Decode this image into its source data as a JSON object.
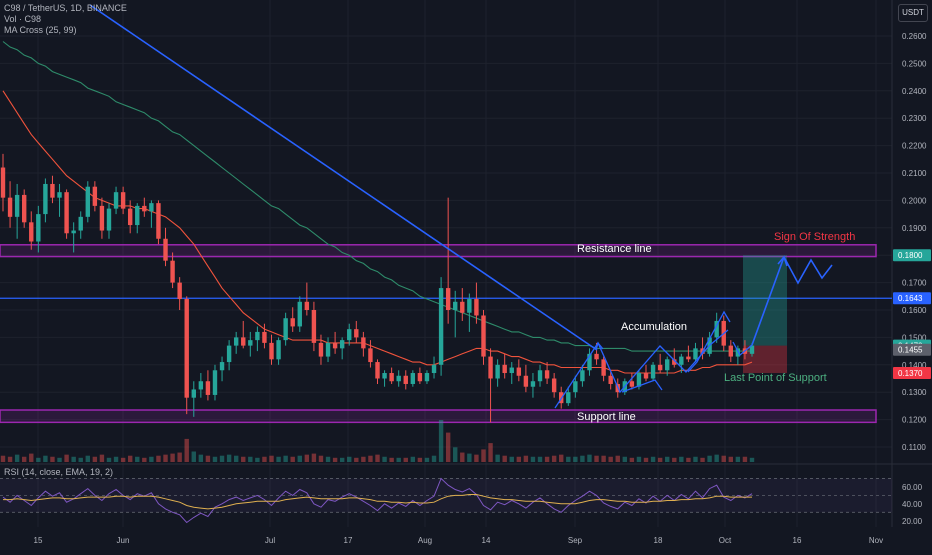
{
  "header": {
    "symbol_line": "C98 / TetherUS, 1D, BINANCE",
    "volume_label": "Vol · C98",
    "ma_label": "MA Cross (25, 99)",
    "rsi_label": "RSI (14, close, EMA, 19, 2)",
    "currency": "USDT"
  },
  "colors": {
    "background": "#131722",
    "up": "#26a69a",
    "down": "#ef5350",
    "ma_fast": "#f0533c",
    "ma_slow": "#2e8b6a",
    "trendline": "#2962ff",
    "zone": "#9c27b0",
    "resistance": "#2962ff",
    "strength_text": "#f23645",
    "lps_text": "#4caf80"
  },
  "chart_data": {
    "type": "candlestick",
    "symbol": "C98 / TetherUS",
    "interval": "1D",
    "exchange": "BINANCE",
    "y_axis": {
      "scale": "linear",
      "ylim": [
        0.105,
        0.265
      ],
      "ticks": [
        "0.1100",
        "0.1200",
        "0.1300",
        "0.1400",
        "0.1500",
        "0.1600",
        "0.1700",
        "0.1800",
        "0.1900",
        "0.2000",
        "0.2100",
        "0.2200",
        "0.2300",
        "0.2400",
        "0.2500",
        "0.2600"
      ]
    },
    "x_axis": {
      "ticks": [
        "15",
        "Jun",
        "Jul",
        "17",
        "Aug",
        "14",
        "Sep",
        "18",
        "Oct",
        "16",
        "Nov"
      ]
    },
    "price_labels": [
      {
        "value": "0.1800",
        "color": "#26a69a"
      },
      {
        "value": "0.1643",
        "color": "#2962ff"
      },
      {
        "value": "0.1470",
        "color": "#26a69a"
      },
      {
        "value": "0.1455",
        "color": "#5d606b"
      },
      {
        "value": "0.1370",
        "color": "#f23645"
      }
    ],
    "levels": {
      "resistance_zone": [
        0.1795,
        0.1838
      ],
      "support_zone": [
        0.119,
        0.1235
      ],
      "horizontal_line": 0.1643,
      "target_zone": [
        0.147,
        0.18
      ],
      "stop_zone": [
        0.137,
        0.147
      ]
    },
    "annotations": [
      "Resistance line",
      "Support line",
      "Accumulation",
      "Sign Of Strength",
      "Last Point of Support"
    ],
    "rsi": {
      "ticks": [
        "60.00",
        "40.00",
        "20.00"
      ],
      "ylim": [
        15,
        80
      ],
      "levels": [
        70,
        50,
        30
      ]
    },
    "candles": [
      [
        0.212,
        0.217,
        0.196,
        0.201
      ],
      [
        0.201,
        0.207,
        0.19,
        0.194
      ],
      [
        0.194,
        0.206,
        0.186,
        0.202
      ],
      [
        0.202,
        0.204,
        0.19,
        0.192
      ],
      [
        0.192,
        0.196,
        0.182,
        0.185
      ],
      [
        0.185,
        0.198,
        0.181,
        0.195
      ],
      [
        0.195,
        0.208,
        0.192,
        0.206
      ],
      [
        0.206,
        0.209,
        0.199,
        0.201
      ],
      [
        0.201,
        0.206,
        0.194,
        0.203
      ],
      [
        0.203,
        0.204,
        0.186,
        0.188
      ],
      [
        0.188,
        0.192,
        0.181,
        0.189
      ],
      [
        0.189,
        0.196,
        0.186,
        0.194
      ],
      [
        0.194,
        0.207,
        0.192,
        0.205
      ],
      [
        0.205,
        0.207,
        0.196,
        0.198
      ],
      [
        0.198,
        0.201,
        0.186,
        0.189
      ],
      [
        0.189,
        0.199,
        0.186,
        0.197
      ],
      [
        0.197,
        0.205,
        0.195,
        0.203
      ],
      [
        0.203,
        0.205,
        0.195,
        0.197
      ],
      [
        0.197,
        0.2,
        0.188,
        0.191
      ],
      [
        0.191,
        0.199,
        0.188,
        0.198
      ],
      [
        0.198,
        0.201,
        0.194,
        0.196
      ],
      [
        0.196,
        0.2,
        0.19,
        0.199
      ],
      [
        0.199,
        0.2,
        0.184,
        0.186
      ],
      [
        0.186,
        0.19,
        0.176,
        0.178
      ],
      [
        0.178,
        0.181,
        0.168,
        0.17
      ],
      [
        0.17,
        0.172,
        0.16,
        0.164
      ],
      [
        0.164,
        0.165,
        0.122,
        0.128
      ],
      [
        0.128,
        0.134,
        0.121,
        0.131
      ],
      [
        0.131,
        0.137,
        0.128,
        0.134
      ],
      [
        0.134,
        0.138,
        0.127,
        0.129
      ],
      [
        0.129,
        0.14,
        0.127,
        0.138
      ],
      [
        0.138,
        0.143,
        0.134,
        0.141
      ],
      [
        0.141,
        0.149,
        0.138,
        0.147
      ],
      [
        0.147,
        0.152,
        0.144,
        0.15
      ],
      [
        0.15,
        0.156,
        0.146,
        0.147
      ],
      [
        0.147,
        0.152,
        0.143,
        0.149
      ],
      [
        0.149,
        0.154,
        0.145,
        0.152
      ],
      [
        0.152,
        0.155,
        0.146,
        0.148
      ],
      [
        0.148,
        0.151,
        0.14,
        0.142
      ],
      [
        0.142,
        0.15,
        0.14,
        0.149
      ],
      [
        0.149,
        0.159,
        0.147,
        0.157
      ],
      [
        0.157,
        0.161,
        0.152,
        0.154
      ],
      [
        0.154,
        0.165,
        0.152,
        0.163
      ],
      [
        0.163,
        0.17,
        0.158,
        0.16
      ],
      [
        0.16,
        0.163,
        0.145,
        0.148
      ],
      [
        0.148,
        0.151,
        0.14,
        0.143
      ],
      [
        0.143,
        0.15,
        0.141,
        0.148
      ],
      [
        0.148,
        0.152,
        0.144,
        0.146
      ],
      [
        0.146,
        0.15,
        0.142,
        0.149
      ],
      [
        0.149,
        0.155,
        0.147,
        0.153
      ],
      [
        0.153,
        0.156,
        0.148,
        0.15
      ],
      [
        0.15,
        0.152,
        0.143,
        0.146
      ],
      [
        0.146,
        0.149,
        0.139,
        0.141
      ],
      [
        0.141,
        0.142,
        0.133,
        0.135
      ],
      [
        0.135,
        0.138,
        0.132,
        0.137
      ],
      [
        0.137,
        0.139,
        0.133,
        0.134
      ],
      [
        0.134,
        0.138,
        0.132,
        0.136
      ],
      [
        0.136,
        0.138,
        0.131,
        0.133
      ],
      [
        0.133,
        0.138,
        0.132,
        0.137
      ],
      [
        0.137,
        0.139,
        0.133,
        0.134
      ],
      [
        0.134,
        0.138,
        0.133,
        0.137
      ],
      [
        0.137,
        0.143,
        0.135,
        0.14
      ],
      [
        0.14,
        0.172,
        0.136,
        0.168
      ],
      [
        0.168,
        0.201,
        0.155,
        0.16
      ],
      [
        0.16,
        0.167,
        0.15,
        0.163
      ],
      [
        0.163,
        0.168,
        0.156,
        0.159
      ],
      [
        0.159,
        0.166,
        0.152,
        0.164
      ],
      [
        0.164,
        0.17,
        0.155,
        0.158
      ],
      [
        0.158,
        0.16,
        0.14,
        0.143
      ],
      [
        0.143,
        0.146,
        0.119,
        0.135
      ],
      [
        0.135,
        0.142,
        0.132,
        0.14
      ],
      [
        0.14,
        0.144,
        0.135,
        0.137
      ],
      [
        0.137,
        0.141,
        0.133,
        0.139
      ],
      [
        0.139,
        0.142,
        0.134,
        0.136
      ],
      [
        0.136,
        0.14,
        0.13,
        0.132
      ],
      [
        0.132,
        0.137,
        0.128,
        0.134
      ],
      [
        0.134,
        0.14,
        0.132,
        0.138
      ],
      [
        0.138,
        0.141,
        0.133,
        0.135
      ],
      [
        0.135,
        0.137,
        0.128,
        0.13
      ],
      [
        0.13,
        0.132,
        0.124,
        0.126
      ],
      [
        0.126,
        0.132,
        0.125,
        0.13
      ],
      [
        0.13,
        0.136,
        0.128,
        0.134
      ],
      [
        0.134,
        0.14,
        0.132,
        0.138
      ],
      [
        0.138,
        0.146,
        0.136,
        0.144
      ],
      [
        0.144,
        0.148,
        0.14,
        0.142
      ],
      [
        0.142,
        0.143,
        0.134,
        0.136
      ],
      [
        0.136,
        0.138,
        0.131,
        0.133
      ],
      [
        0.133,
        0.135,
        0.128,
        0.13
      ],
      [
        0.13,
        0.135,
        0.129,
        0.134
      ],
      [
        0.134,
        0.137,
        0.131,
        0.132
      ],
      [
        0.132,
        0.138,
        0.131,
        0.137
      ],
      [
        0.137,
        0.14,
        0.134,
        0.135
      ],
      [
        0.135,
        0.141,
        0.134,
        0.14
      ],
      [
        0.14,
        0.144,
        0.137,
        0.138
      ],
      [
        0.138,
        0.143,
        0.136,
        0.142
      ],
      [
        0.142,
        0.146,
        0.139,
        0.14
      ],
      [
        0.14,
        0.144,
        0.137,
        0.143
      ],
      [
        0.143,
        0.147,
        0.141,
        0.142
      ],
      [
        0.142,
        0.148,
        0.141,
        0.146
      ],
      [
        0.146,
        0.15,
        0.142,
        0.144
      ],
      [
        0.144,
        0.152,
        0.143,
        0.15
      ],
      [
        0.15,
        0.159,
        0.148,
        0.156
      ],
      [
        0.156,
        0.158,
        0.145,
        0.147
      ],
      [
        0.147,
        0.149,
        0.141,
        0.143
      ],
      [
        0.143,
        0.147,
        0.14,
        0.146
      ],
      [
        0.146,
        0.149,
        0.142,
        0.144
      ],
      [
        0.144,
        0.148,
        0.143,
        0.147
      ]
    ],
    "ma_fast": [
      0.24,
      0.236,
      0.232,
      0.228,
      0.224,
      0.221,
      0.218,
      0.215,
      0.212,
      0.209,
      0.207,
      0.205,
      0.203,
      0.201,
      0.2,
      0.199,
      0.198,
      0.198,
      0.198,
      0.197,
      0.197,
      0.196,
      0.195,
      0.194,
      0.192,
      0.19,
      0.187,
      0.184,
      0.18,
      0.176,
      0.172,
      0.168,
      0.165,
      0.162,
      0.159,
      0.157,
      0.155,
      0.153,
      0.152,
      0.151,
      0.15,
      0.149,
      0.149,
      0.149,
      0.149,
      0.149,
      0.148,
      0.148,
      0.148,
      0.148,
      0.148,
      0.148,
      0.147,
      0.146,
      0.145,
      0.144,
      0.143,
      0.142,
      0.141,
      0.141,
      0.14,
      0.14,
      0.141,
      0.142,
      0.143,
      0.144,
      0.145,
      0.146,
      0.146,
      0.145,
      0.145,
      0.144,
      0.143,
      0.143,
      0.142,
      0.141,
      0.141,
      0.14,
      0.14,
      0.139,
      0.139,
      0.139,
      0.139,
      0.139,
      0.139,
      0.139,
      0.138,
      0.138,
      0.137,
      0.137,
      0.137,
      0.137,
      0.137,
      0.137,
      0.137,
      0.137,
      0.138,
      0.138,
      0.138,
      0.139,
      0.139,
      0.14,
      0.14,
      0.14,
      0.14,
      0.14,
      0.141
    ],
    "ma_slow": [
      0.258,
      0.256,
      0.255,
      0.253,
      0.252,
      0.25,
      0.249,
      0.247,
      0.246,
      0.245,
      0.244,
      0.243,
      0.241,
      0.24,
      0.239,
      0.238,
      0.236,
      0.235,
      0.234,
      0.233,
      0.232,
      0.23,
      0.229,
      0.227,
      0.225,
      0.224,
      0.222,
      0.22,
      0.218,
      0.216,
      0.214,
      0.212,
      0.21,
      0.208,
      0.206,
      0.204,
      0.202,
      0.2,
      0.198,
      0.197,
      0.195,
      0.193,
      0.191,
      0.19,
      0.188,
      0.186,
      0.184,
      0.183,
      0.181,
      0.18,
      0.178,
      0.177,
      0.175,
      0.174,
      0.172,
      0.171,
      0.169,
      0.168,
      0.167,
      0.165,
      0.164,
      0.163,
      0.162,
      0.161,
      0.16,
      0.159,
      0.158,
      0.157,
      0.156,
      0.155,
      0.154,
      0.153,
      0.152,
      0.152,
      0.151,
      0.15,
      0.15,
      0.149,
      0.149,
      0.148,
      0.148,
      0.147,
      0.147,
      0.147,
      0.146,
      0.146,
      0.146,
      0.146,
      0.146,
      0.145,
      0.145,
      0.145,
      0.145,
      0.145,
      0.145,
      0.145,
      0.145,
      0.145,
      0.145,
      0.145,
      0.145,
      0.145,
      0.145,
      0.145,
      0.145,
      0.145,
      0.145
    ],
    "volume": [
      6,
      5,
      7,
      5,
      8,
      4,
      6,
      5,
      4,
      7,
      5,
      4,
      6,
      5,
      7,
      4,
      5,
      4,
      6,
      5,
      4,
      5,
      6,
      7,
      8,
      9,
      22,
      10,
      7,
      6,
      5,
      6,
      7,
      6,
      5,
      5,
      4,
      5,
      6,
      5,
      6,
      5,
      6,
      7,
      8,
      6,
      5,
      4,
      4,
      5,
      4,
      5,
      6,
      7,
      5,
      4,
      4,
      4,
      5,
      4,
      4,
      6,
      40,
      28,
      14,
      9,
      8,
      7,
      12,
      18,
      7,
      6,
      5,
      5,
      6,
      5,
      5,
      5,
      6,
      7,
      5,
      5,
      6,
      7,
      6,
      6,
      5,
      6,
      5,
      4,
      5,
      4,
      5,
      4,
      5,
      4,
      5,
      4,
      5,
      4,
      6,
      7,
      6,
      5,
      5,
      5,
      4
    ],
    "rsi_values": [
      48,
      42,
      50,
      44,
      38,
      47,
      55,
      49,
      53,
      42,
      46,
      52,
      58,
      50,
      44,
      52,
      57,
      50,
      45,
      52,
      49,
      53,
      40,
      34,
      30,
      27,
      18,
      24,
      29,
      25,
      36,
      40,
      45,
      48,
      44,
      47,
      50,
      45,
      38,
      47,
      55,
      50,
      57,
      53,
      40,
      36,
      45,
      43,
      48,
      52,
      48,
      43,
      38,
      32,
      40,
      35,
      41,
      37,
      44,
      38,
      44,
      49,
      70,
      62,
      57,
      54,
      58,
      51,
      38,
      33,
      42,
      39,
      44,
      40,
      35,
      42,
      47,
      40,
      34,
      30,
      38,
      44,
      49,
      55,
      50,
      41,
      37,
      34,
      42,
      38,
      46,
      41,
      49,
      43,
      50,
      44,
      51,
      46,
      55,
      47,
      58,
      62,
      48,
      44,
      50,
      47,
      52
    ],
    "rsi_ema": [
      45,
      45,
      46,
      45,
      44,
      45,
      46,
      47,
      47,
      46,
      46,
      47,
      48,
      48,
      48,
      48,
      49,
      49,
      48,
      49,
      49,
      49,
      48,
      46,
      44,
      42,
      38,
      36,
      35,
      34,
      35,
      36,
      38,
      40,
      41,
      42,
      43,
      43,
      43,
      43,
      45,
      46,
      47,
      48,
      47,
      46,
      46,
      46,
      46,
      47,
      47,
      46,
      45,
      43,
      43,
      42,
      42,
      41,
      42,
      41,
      41,
      42,
      46,
      49,
      50,
      50,
      51,
      51,
      49,
      47,
      46,
      45,
      45,
      44,
      43,
      43,
      43,
      42,
      41,
      40,
      40,
      40,
      42,
      44,
      45,
      45,
      44,
      43,
      43,
      42,
      42,
      42,
      43,
      43,
      44,
      44,
      45,
      45,
      46,
      46,
      47,
      49,
      49,
      48,
      48,
      48,
      48
    ]
  }
}
